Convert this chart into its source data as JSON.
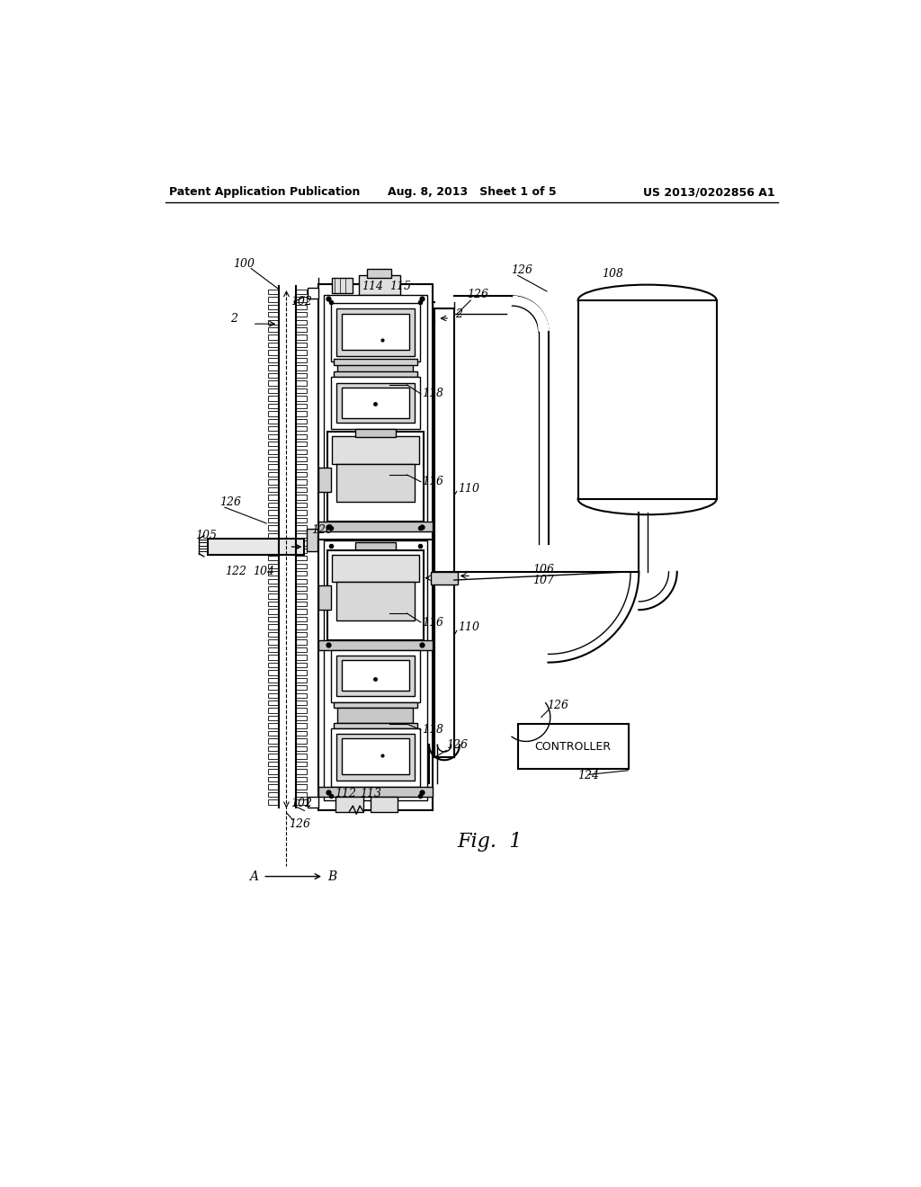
{
  "background_color": "#ffffff",
  "header_left": "Patent Application Publication",
  "header_center": "Aug. 8, 2013   Sheet 1 of 5",
  "header_right": "US 2013/0202856 A1",
  "figure_label": "Fig.  1"
}
